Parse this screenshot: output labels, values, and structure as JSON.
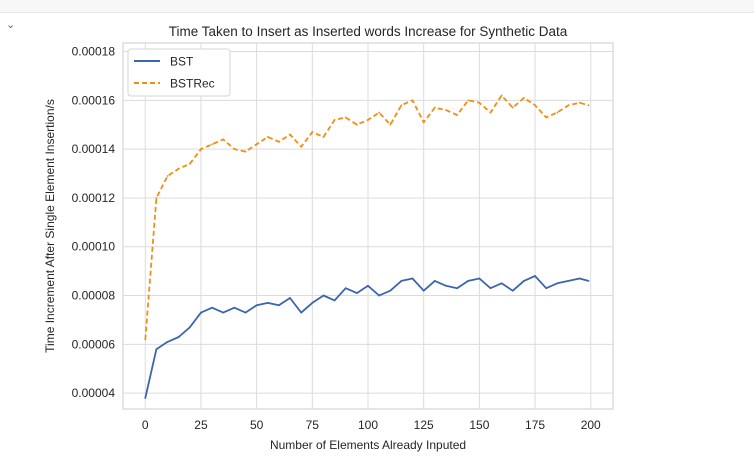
{
  "cell": {
    "collapse_icon": "chevron-down-icon",
    "collapse_glyph": "⌄"
  },
  "chart_data": {
    "type": "line",
    "title": "Time Taken to Insert as Inserted words Increase for Synthetic Data",
    "xlabel": "Number of Elements Already Inputed",
    "ylabel": "Time Increment After Single Element Insertion/s",
    "xlim": [
      -10,
      210
    ],
    "ylim": [
      3.35e-05,
      0.0001835
    ],
    "xticks": [
      0,
      25,
      50,
      75,
      100,
      125,
      150,
      175,
      200
    ],
    "xtick_labels": [
      "0",
      "25",
      "50",
      "75",
      "100",
      "125",
      "150",
      "175",
      "200"
    ],
    "yticks": [
      4e-05,
      6e-05,
      8e-05,
      0.0001,
      0.00012,
      0.00014,
      0.00016,
      0.00018
    ],
    "ytick_labels": [
      "0.00004",
      "0.00006",
      "0.00008",
      "0.00010",
      "0.00012",
      "0.00014",
      "0.00016",
      "0.00018"
    ],
    "grid": true,
    "legend_position": "top-left",
    "series": [
      {
        "name": "BST",
        "color": "#3b66ae",
        "style": "solid",
        "x": [
          0,
          5,
          10,
          15,
          20,
          25,
          30,
          35,
          40,
          45,
          50,
          55,
          60,
          65,
          70,
          75,
          80,
          85,
          90,
          95,
          100,
          105,
          110,
          115,
          120,
          125,
          130,
          135,
          140,
          145,
          150,
          155,
          160,
          165,
          170,
          175,
          180,
          185,
          190,
          195,
          199
        ],
        "y": [
          3.8e-05,
          5.8e-05,
          6.1e-05,
          6.3e-05,
          6.7e-05,
          7.3e-05,
          7.5e-05,
          7.3e-05,
          7.5e-05,
          7.3e-05,
          7.6e-05,
          7.7e-05,
          7.6e-05,
          7.9e-05,
          7.3e-05,
          7.7e-05,
          8e-05,
          7.8e-05,
          8.3e-05,
          8.1e-05,
          8.4e-05,
          8e-05,
          8.2e-05,
          8.6e-05,
          8.7e-05,
          8.2e-05,
          8.6e-05,
          8.4e-05,
          8.3e-05,
          8.6e-05,
          8.7e-05,
          8.3e-05,
          8.5e-05,
          8.2e-05,
          8.6e-05,
          8.8e-05,
          8.3e-05,
          8.5e-05,
          8.6e-05,
          8.7e-05,
          8.6e-05
        ]
      },
      {
        "name": "BSTRec",
        "color": "#f28e14",
        "style": "dashed",
        "x": [
          0,
          5,
          10,
          15,
          20,
          25,
          30,
          35,
          40,
          45,
          50,
          55,
          60,
          65,
          70,
          75,
          80,
          85,
          90,
          95,
          100,
          105,
          110,
          115,
          120,
          125,
          130,
          135,
          140,
          145,
          150,
          155,
          160,
          165,
          170,
          175,
          180,
          185,
          190,
          195,
          199
        ],
        "y": [
          6.2e-05,
          0.00012,
          0.000129,
          0.000132,
          0.000134,
          0.00014,
          0.000142,
          0.000144,
          0.00014,
          0.000139,
          0.000142,
          0.000145,
          0.000143,
          0.000146,
          0.000141,
          0.000147,
          0.000145,
          0.000152,
          0.000153,
          0.00015,
          0.000152,
          0.000155,
          0.00015,
          0.000158,
          0.00016,
          0.000151,
          0.000157,
          0.000156,
          0.000154,
          0.00016,
          0.000159,
          0.000155,
          0.000162,
          0.000157,
          0.000161,
          0.000158,
          0.000153,
          0.000155,
          0.000158,
          0.000159,
          0.000158
        ]
      }
    ]
  }
}
